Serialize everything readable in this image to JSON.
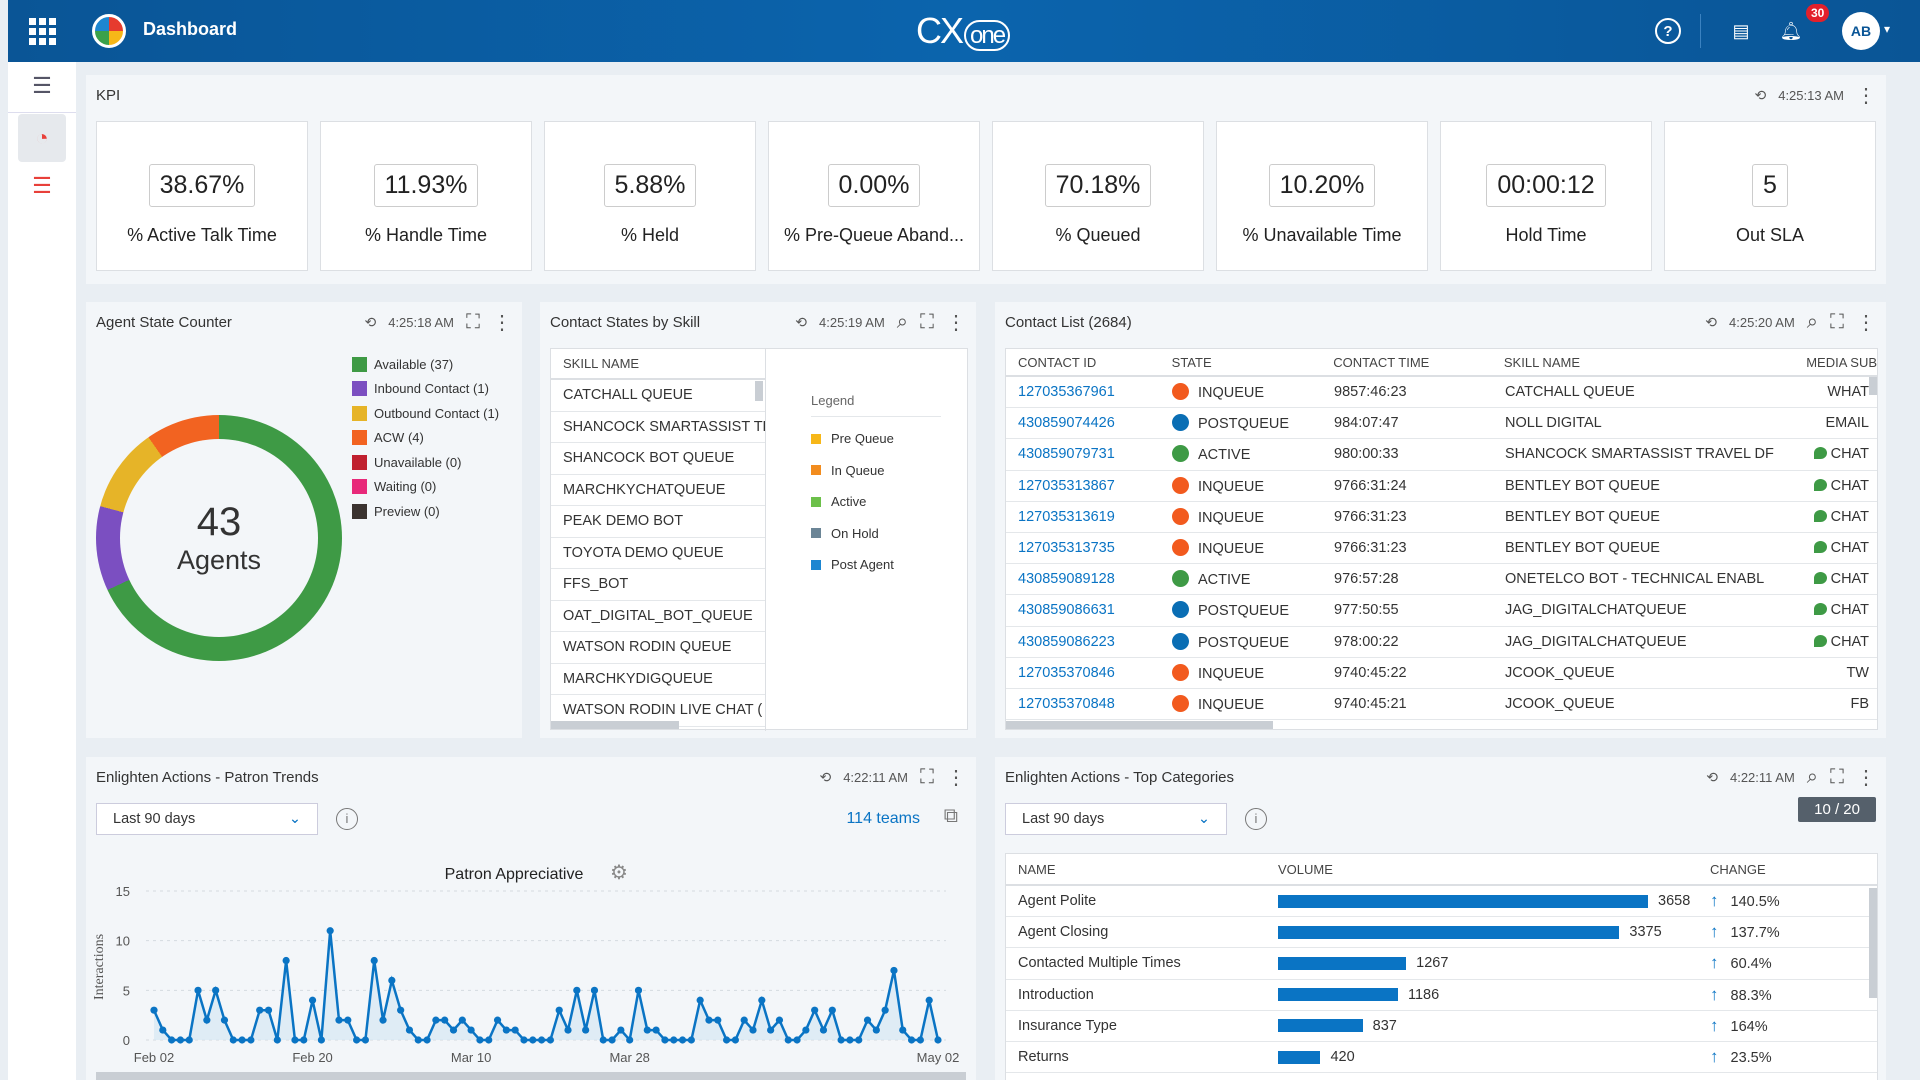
{
  "header": {
    "title": "Dashboard",
    "brand": "CX",
    "brand_suffix": "one",
    "notifications": "30",
    "avatar": "AB"
  },
  "colors": {
    "header": "#0b5a9e",
    "accent": "#0a74c4",
    "inqueue": "#f25a1e",
    "postqueue": "#0a6eb4",
    "active": "#3e9a45"
  },
  "kpi": {
    "title": "KPI",
    "time": "4:25:13 AM",
    "cards": [
      {
        "value": "38.67%",
        "label": "% Active Talk Time"
      },
      {
        "value": "11.93%",
        "label": "% Handle Time"
      },
      {
        "value": "5.88%",
        "label": "% Held"
      },
      {
        "value": "0.00%",
        "label": "% Pre-Queue Aband..."
      },
      {
        "value": "70.18%",
        "label": "% Queued"
      },
      {
        "value": "10.20%",
        "label": "% Unavailable Time"
      },
      {
        "value": "00:00:12",
        "label": "Hold Time"
      },
      {
        "value": "5",
        "label": "Out SLA"
      }
    ]
  },
  "agent_state": {
    "title": "Agent State Counter",
    "time": "4:25:18 AM",
    "total": "43",
    "total_label": "Agents",
    "legend": [
      {
        "label": "Available (37)",
        "color": "#3e9a45"
      },
      {
        "label": "Inbound Contact (1)",
        "color": "#7b4fc1"
      },
      {
        "label": "Outbound Contact (1)",
        "color": "#e6b428"
      },
      {
        "label": "ACW (4)",
        "color": "#f26321"
      },
      {
        "label": "Unavailable (0)",
        "color": "#c0202f"
      },
      {
        "label": "Waiting (0)",
        "color": "#e8297a"
      },
      {
        "label": "Preview (0)",
        "color": "#3b3330"
      }
    ]
  },
  "contact_states": {
    "title": "Contact States by Skill",
    "time": "4:25:19 AM",
    "column": "SKILL NAME",
    "skills": [
      "CATCHALL QUEUE",
      "SHANCOCK SMARTASSIST TF",
      "SHANCOCK BOT QUEUE",
      "MARCHKYCHATQUEUE",
      "PEAK DEMO BOT",
      "TOYOTA DEMO QUEUE",
      "FFS_BOT",
      "OAT_DIGITAL_BOT_QUEUE",
      "WATSON RODIN QUEUE",
      "MARCHKYDIGQUEUE",
      "WATSON RODIN LIVE CHAT ("
    ],
    "legend_title": "Legend",
    "legend": [
      {
        "label": "Pre Queue",
        "color": "#f7b718"
      },
      {
        "label": "In Queue",
        "color": "#f28c1e"
      },
      {
        "label": "Active",
        "color": "#6cc04a"
      },
      {
        "label": "On Hold",
        "color": "#6b8596"
      },
      {
        "label": "Post Agent",
        "color": "#1d86d1"
      }
    ]
  },
  "contact_list": {
    "title": "Contact List (2684)",
    "time": "4:25:20 AM",
    "columns": [
      "CONTACT ID",
      "STATE",
      "CONTACT TIME",
      "SKILL NAME",
      "MEDIA SUB"
    ],
    "rows": [
      {
        "id": "127035367961",
        "state": "INQUEUE",
        "time": "9857:46:23",
        "skill": "CATCHALL QUEUE",
        "media": "WHAT"
      },
      {
        "id": "430859074426",
        "state": "POSTQUEUE",
        "time": "984:07:47",
        "skill": "NOLL DIGITAL",
        "media": "EMAIL"
      },
      {
        "id": "430859079731",
        "state": "ACTIVE",
        "time": "980:00:33",
        "skill": "SHANCOCK SMARTASSIST TRAVEL DF",
        "media": "CHAT"
      },
      {
        "id": "127035313867",
        "state": "INQUEUE",
        "time": "9766:31:24",
        "skill": "BENTLEY BOT QUEUE",
        "media": "CHAT"
      },
      {
        "id": "127035313619",
        "state": "INQUEUE",
        "time": "9766:31:23",
        "skill": "BENTLEY BOT QUEUE",
        "media": "CHAT"
      },
      {
        "id": "127035313735",
        "state": "INQUEUE",
        "time": "9766:31:23",
        "skill": "BENTLEY BOT QUEUE",
        "media": "CHAT"
      },
      {
        "id": "430859089128",
        "state": "ACTIVE",
        "time": "976:57:28",
        "skill": "ONETELCO BOT - TECHNICAL ENABL",
        "media": "CHAT"
      },
      {
        "id": "430859086631",
        "state": "POSTQUEUE",
        "time": "977:50:55",
        "skill": "JAG_DIGITALCHATQUEUE",
        "media": "CHAT"
      },
      {
        "id": "430859086223",
        "state": "POSTQUEUE",
        "time": "978:00:22",
        "skill": "JAG_DIGITALCHATQUEUE",
        "media": "CHAT"
      },
      {
        "id": "127035370846",
        "state": "INQUEUE",
        "time": "9740:45:22",
        "skill": "JCOOK_QUEUE",
        "media": "TW"
      },
      {
        "id": "127035370848",
        "state": "INQUEUE",
        "time": "9740:45:21",
        "skill": "JCOOK_QUEUE",
        "media": "FB"
      }
    ]
  },
  "patron_trends": {
    "title": "Enlighten Actions - Patron Trends",
    "time": "4:22:11 AM",
    "range": "Last 90 days",
    "teams": "114 teams"
  },
  "chart_data": {
    "type": "area",
    "title": "Patron Appreciative",
    "xlabel": "",
    "ylabel": "Interactions",
    "ylim": [
      0,
      15
    ],
    "yticks": [
      0,
      5,
      10,
      15
    ],
    "xticks": [
      "Feb 02",
      "Feb 20",
      "Mar 10",
      "Mar 28",
      "May 02"
    ],
    "x_range": [
      "Feb 02",
      "May 02"
    ],
    "grid": "horizontal dashed",
    "color": "#0a74c4",
    "values": [
      3,
      1,
      0,
      0,
      0,
      5,
      2,
      5,
      2,
      0,
      0,
      0,
      3,
      3,
      0,
      8,
      0,
      0,
      4,
      0,
      11,
      2,
      2,
      0,
      0,
      8,
      2,
      6,
      3,
      1,
      0,
      0,
      2,
      2,
      1,
      2,
      1,
      0,
      0,
      2,
      1,
      1,
      0,
      0,
      0,
      0,
      3,
      1,
      5,
      1,
      5,
      0,
      0,
      1,
      0,
      5,
      1,
      1,
      0,
      0,
      0,
      0,
      4,
      2,
      2,
      0,
      0,
      2,
      1,
      4,
      1,
      2,
      0,
      0,
      1,
      3,
      1,
      3,
      0,
      0,
      0,
      2,
      1,
      3,
      7,
      1,
      0,
      0,
      4,
      0
    ]
  },
  "top_categories": {
    "title": "Enlighten Actions - Top Categories",
    "time": "4:22:11 AM",
    "range": "Last 90 days",
    "tooltip": "10 / 20",
    "columns": [
      "NAME",
      "VOLUME",
      "CHANGE"
    ],
    "rows": [
      {
        "name": "Agent Polite",
        "volume": 3658,
        "change": "140.5%"
      },
      {
        "name": "Agent Closing",
        "volume": 3375,
        "change": "137.7%"
      },
      {
        "name": "Contacted Multiple Times",
        "volume": 1267,
        "change": "60.4%"
      },
      {
        "name": "Introduction",
        "volume": 1186,
        "change": "88.3%"
      },
      {
        "name": "Insurance Type",
        "volume": 837,
        "change": "164%"
      },
      {
        "name": "Returns",
        "volume": 420,
        "change": "23.5%"
      }
    ]
  }
}
